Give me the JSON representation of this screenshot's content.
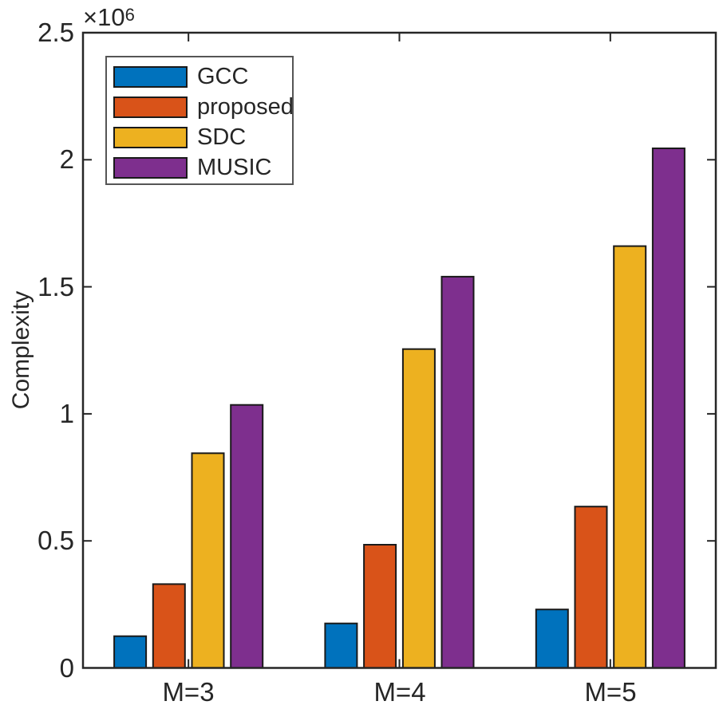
{
  "figure": {
    "multiplier_base": "×10",
    "multiplier_exp": "6",
    "axis_color": "#262626",
    "bar_edge_color": "#1a1a1a",
    "background": "#ffffff"
  },
  "chart_data": {
    "type": "bar",
    "title": "",
    "xlabel": "",
    "ylabel": "Complexity",
    "y_multiplier": "×10^6",
    "categories": [
      "M=3",
      "M=4",
      "M=5"
    ],
    "series": [
      {
        "name": "GCC",
        "color": "#0072BD",
        "values": [
          125000,
          175000,
          230000
        ]
      },
      {
        "name": "proposed",
        "color": "#D95319",
        "values": [
          330000,
          485000,
          635000
        ]
      },
      {
        "name": "SDC",
        "color": "#EDB120",
        "values": [
          845000,
          1255000,
          1660000
        ]
      },
      {
        "name": "MUSIC",
        "color": "#7E2F8E",
        "values": [
          1035000,
          1540000,
          2045000
        ]
      }
    ],
    "ylim": [
      0,
      2500000
    ],
    "yticks": {
      "values": [
        0,
        500000,
        1000000,
        1500000,
        2000000,
        2500000
      ],
      "labels": [
        "0",
        "0.5",
        "1",
        "1.5",
        "2",
        "2.5"
      ]
    },
    "grid": false,
    "legend_position": "top-left-inside"
  }
}
